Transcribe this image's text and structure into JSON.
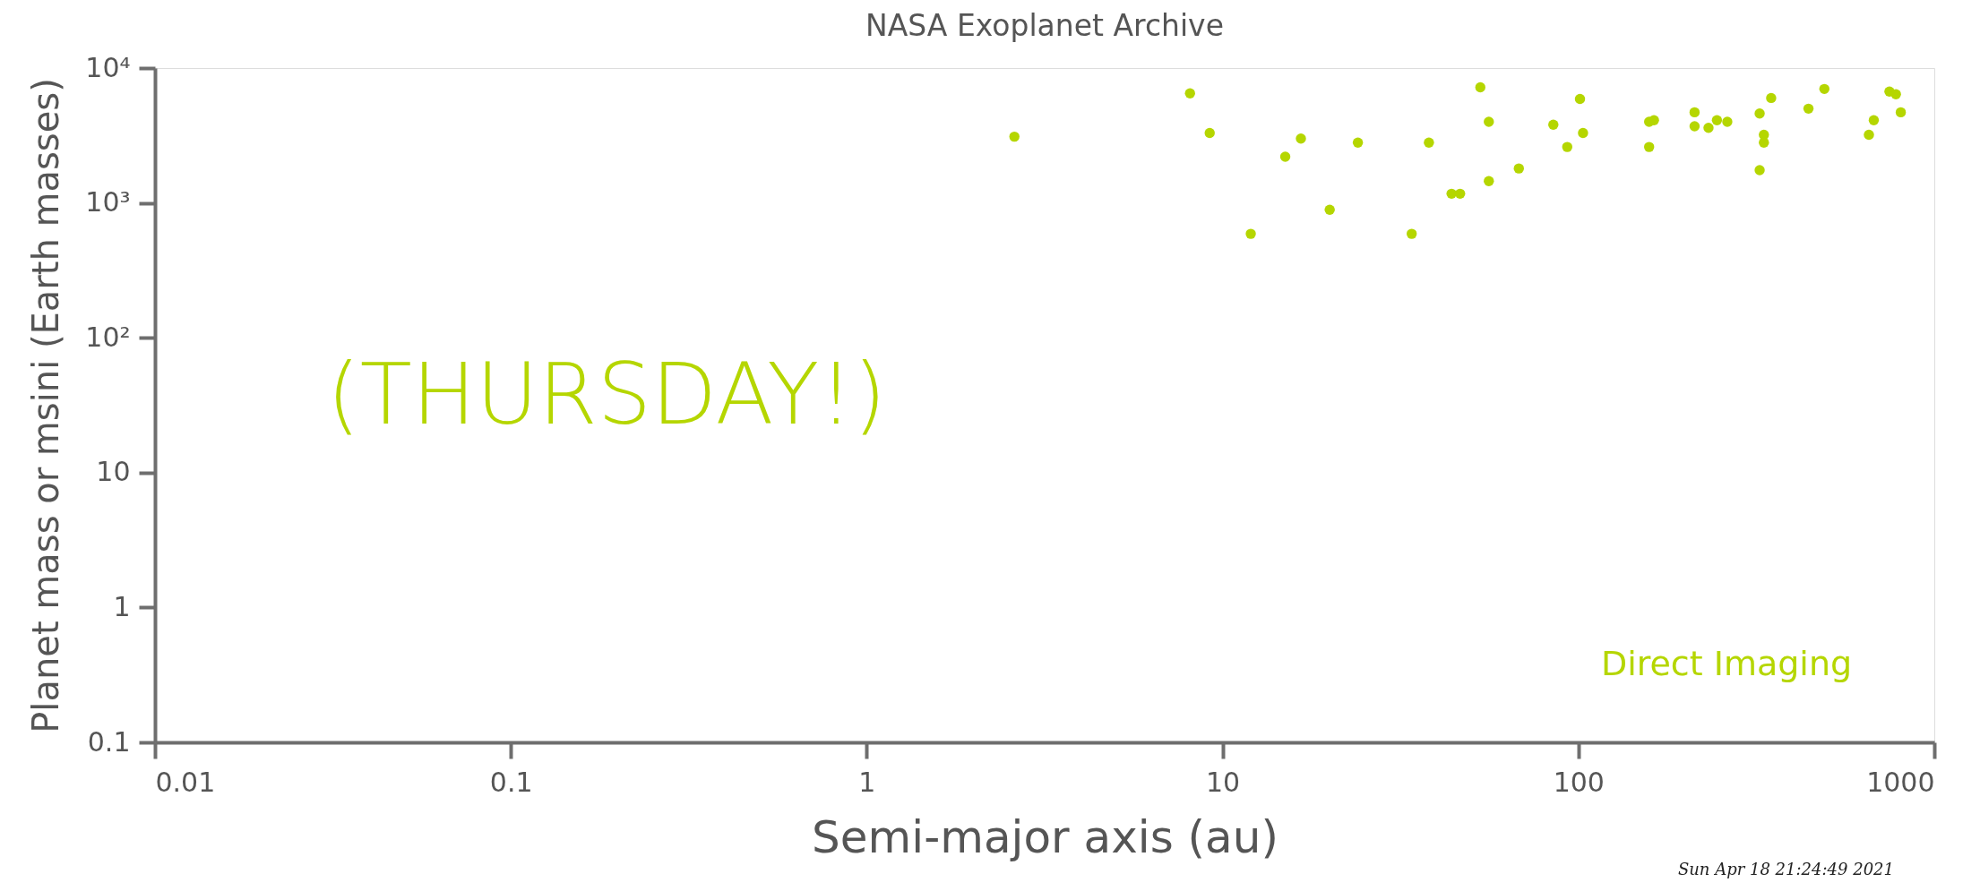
{
  "chart_data": {
    "type": "scatter",
    "title": "NASA Exoplanet Archive",
    "xlabel": "Semi-major axis (au)",
    "ylabel": "Planet mass or msini (Earth masses)",
    "log": "xy",
    "grid": false,
    "marker": "circle",
    "xlim": [
      0.01,
      1000
    ],
    "xticks": [
      0.01,
      0.1,
      1,
      10,
      100,
      1000
    ],
    "ylim": [
      0.1,
      10000
    ],
    "yticks": [
      0.1,
      1,
      10,
      {
        "value": 100,
        "label": "10²"
      },
      {
        "value": 1000,
        "label": "10³"
      },
      {
        "value": 10000,
        "label": "10⁴"
      }
    ],
    "annotations": [
      "(THURSDAY!)",
      "Sun Apr 18 21:24:49 2021"
    ],
    "series": [
      {
        "name": "Direct Imaging",
        "color": "#b5d600",
        "x": [
          2.6,
          8.1,
          9.2,
          12,
          15,
          16.6,
          20,
          24,
          34,
          38,
          53,
          44,
          46.5,
          56,
          56,
          68,
          85,
          93,
          101,
          103,
          158,
          163,
          158,
          212,
          212,
          232,
          245,
          262,
          323,
          323,
          332,
          332,
          348,
          443,
          491,
          655,
          676,
          748,
          780,
          805
        ],
        "values": [
          3100,
          6500,
          3300,
          590,
          2200,
          3000,
          890,
          2800,
          590,
          2800,
          7200,
          1170,
          1170,
          4000,
          1450,
          1800,
          3800,
          2600,
          5900,
          3300,
          4000,
          4100,
          2600,
          4700,
          3700,
          3600,
          4100,
          4000,
          4600,
          1750,
          3200,
          2800,
          6000,
          5000,
          7000,
          3200,
          4100,
          6700,
          6400,
          4700
        ]
      }
    ]
  }
}
